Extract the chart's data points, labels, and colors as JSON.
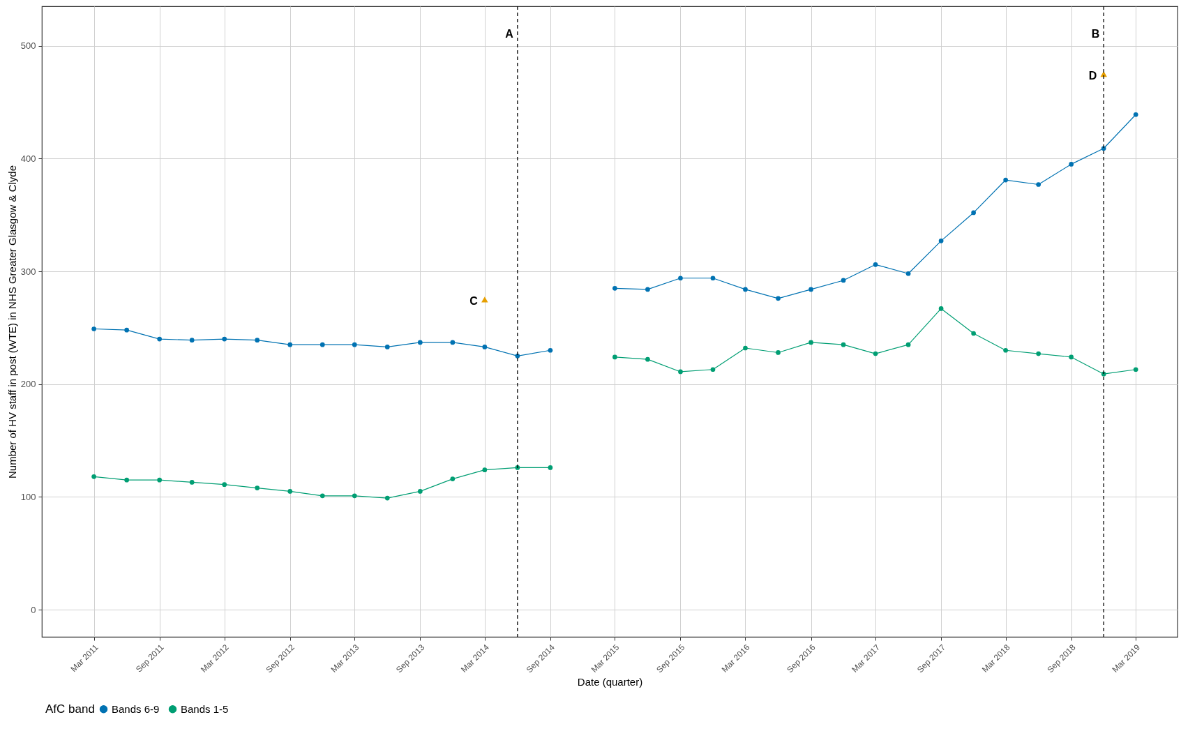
{
  "chart_data": {
    "type": "line",
    "xlabel": "Date (quarter)",
    "ylabel": "Number of HV staff in post (WTE) in NHS Greater Glasgow & Clyde",
    "legend_title": "AfC band",
    "x": [
      "2011-03",
      "2011-06",
      "2011-09",
      "2011-12",
      "2012-03",
      "2012-06",
      "2012-09",
      "2012-12",
      "2013-03",
      "2013-06",
      "2013-09",
      "2013-12",
      "2014-03",
      "2014-06",
      "2014-09",
      "2014-12",
      "2015-03",
      "2015-06",
      "2015-09",
      "2015-12",
      "2016-03",
      "2016-06",
      "2016-09",
      "2016-12",
      "2017-03",
      "2017-06",
      "2017-09",
      "2017-12",
      "2018-03",
      "2018-06",
      "2018-09",
      "2018-12",
      "2019-03"
    ],
    "series": [
      {
        "name": "Bands 6-9",
        "color": "#0072b2",
        "values": [
          249,
          248,
          240,
          239,
          240,
          239,
          235,
          235,
          235,
          233,
          237,
          237,
          233,
          225,
          230,
          null,
          285,
          284,
          294,
          294,
          284,
          276,
          284,
          292,
          306,
          298,
          327,
          352,
          381,
          377,
          395,
          409,
          439
        ]
      },
      {
        "name": "Bands 1-5",
        "color": "#009e73",
        "values": [
          118,
          115,
          115,
          113,
          111,
          108,
          105,
          101,
          101,
          99,
          105,
          116,
          124,
          126,
          126,
          null,
          224,
          222,
          211,
          213,
          232,
          228,
          237,
          235,
          227,
          235,
          267,
          245,
          230,
          227,
          224,
          209,
          213
        ]
      },
      {
        "type": "scatter",
        "marker": "triangle",
        "color": "#e69f00",
        "x": [
          "2014-03",
          "2018-12"
        ],
        "values": [
          275,
          475
        ]
      }
    ],
    "marker": "circle",
    "line_style": "solid",
    "ref_lines": [
      {
        "axis": "x",
        "value": "2014-06",
        "label": "A",
        "color": "#000000",
        "line_style": "dashed"
      },
      {
        "axis": "x",
        "value": "2018-12",
        "label": "B",
        "color": "#000000",
        "line_style": "dashed"
      }
    ],
    "annotations": [
      {
        "text": "C",
        "x": "2014-03",
        "y": 275
      },
      {
        "text": "D",
        "x": "2018-12",
        "y": 475
      }
    ],
    "xlim": [
      "2010-10-06",
      "2019-06-26"
    ],
    "xticks": [
      {
        "value": "2011-03",
        "label": "Mar 2011"
      },
      {
        "value": "2011-09",
        "label": "Sep 2011"
      },
      {
        "value": "2012-03",
        "label": "Mar 2012"
      },
      {
        "value": "2012-09",
        "label": "Sep 2012"
      },
      {
        "value": "2013-03",
        "label": "Mar 2013"
      },
      {
        "value": "2013-09",
        "label": "Sep 2013"
      },
      {
        "value": "2014-03",
        "label": "Mar 2014"
      },
      {
        "value": "2014-09",
        "label": "Sep 2014"
      },
      {
        "value": "2015-03",
        "label": "Mar 2015"
      },
      {
        "value": "2015-09",
        "label": "Sep 2015"
      },
      {
        "value": "2016-03",
        "label": "Mar 2016"
      },
      {
        "value": "2016-09",
        "label": "Sep 2016"
      },
      {
        "value": "2017-03",
        "label": "Mar 2017"
      },
      {
        "value": "2017-09",
        "label": "Sep 2017"
      },
      {
        "value": "2018-03",
        "label": "Mar 2018"
      },
      {
        "value": "2018-09",
        "label": "Sep 2018"
      },
      {
        "value": "2019-03",
        "label": "Mar 2019"
      }
    ],
    "ylim": [
      -24,
      535
    ],
    "yticks": [
      0,
      100,
      200,
      300,
      400,
      500
    ],
    "grid": true,
    "legend": "bottom"
  }
}
